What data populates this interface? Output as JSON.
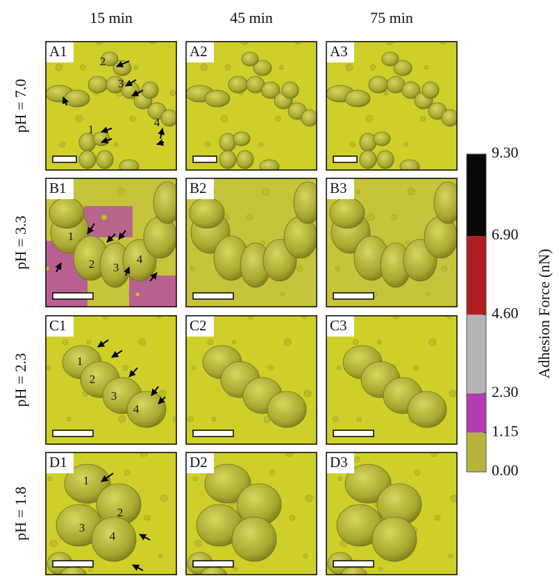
{
  "column_headers": [
    "15 min",
    "45 min",
    "75 min"
  ],
  "rows": [
    {
      "label": "pH = 7.0",
      "panels": [
        "A1",
        "A2",
        "A3"
      ],
      "cell_numbers": [
        "1",
        "2",
        "3",
        "4"
      ]
    },
    {
      "label": "pH = 3.3",
      "panels": [
        "B1",
        "B2",
        "B3"
      ],
      "cell_numbers": [
        "1",
        "2",
        "3",
        "4"
      ]
    },
    {
      "label": "pH = 2.3",
      "panels": [
        "C1",
        "C2",
        "C3"
      ],
      "cell_numbers": [
        "1",
        "2",
        "3",
        "4"
      ]
    },
    {
      "label": "pH = 1.8",
      "panels": [
        "D1",
        "D2",
        "D3"
      ],
      "cell_numbers": [
        "1",
        "2",
        "3",
        "4"
      ]
    }
  ],
  "colorbar": {
    "label": "Adhesion Force (nN)",
    "ticks": [
      {
        "value": 0,
        "label": "0.00"
      },
      {
        "value": 1.15,
        "label": "1.15"
      },
      {
        "value": 2.3,
        "label": "2.30"
      },
      {
        "value": 4.6,
        "label": "4.60"
      },
      {
        "value": 6.9,
        "label": "6.90"
      },
      {
        "value": 9.3,
        "label": "9.30"
      }
    ],
    "colors": [
      "#b5b53c",
      "#b23cb0",
      "#b4b4b4",
      "#b01e22",
      "#080808"
    ]
  }
}
